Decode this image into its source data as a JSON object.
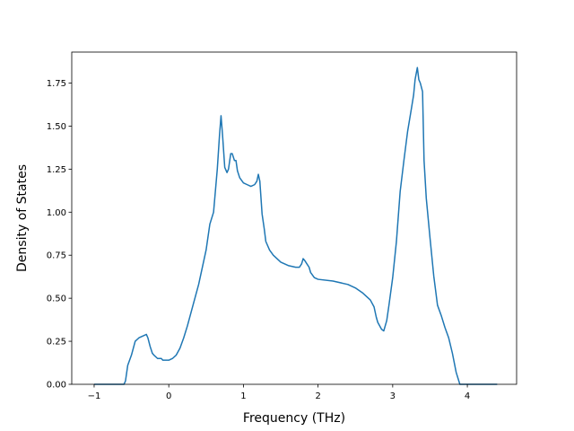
{
  "chart_data": {
    "type": "line",
    "title": "",
    "xlabel": "Frequency (THz)",
    "ylabel": "Density of States",
    "xlim": [
      -1.3,
      4.66
    ],
    "ylim": [
      0,
      1.93
    ],
    "grid": false,
    "x_ticks": [
      -1,
      0,
      1,
      2,
      3,
      4
    ],
    "x_tick_labels": [
      "−1",
      "0",
      "1",
      "2",
      "3",
      "4"
    ],
    "y_ticks": [
      0.0,
      0.25,
      0.5,
      0.75,
      1.0,
      1.25,
      1.5,
      1.75
    ],
    "y_tick_labels": [
      "0.00",
      "0.25",
      "0.50",
      "0.75",
      "1.00",
      "1.25",
      "1.50",
      "1.75"
    ],
    "line_color": "#1f77b4",
    "series": [
      {
        "x": [
          -1.0,
          -0.8,
          -0.6,
          -0.58,
          -0.55,
          -0.5,
          -0.45,
          -0.4,
          -0.35,
          -0.3,
          -0.28,
          -0.25,
          -0.22,
          -0.2,
          -0.15,
          -0.1,
          -0.08,
          -0.05,
          0.0,
          0.05,
          0.1,
          0.15,
          0.2,
          0.25,
          0.3,
          0.4,
          0.5,
          0.55,
          0.6,
          0.62,
          0.65,
          0.68,
          0.7,
          0.72,
          0.75,
          0.78,
          0.8,
          0.83,
          0.85,
          0.88,
          0.9,
          0.92,
          0.95,
          1.0,
          1.05,
          1.1,
          1.15,
          1.18,
          1.2,
          1.22,
          1.25,
          1.28,
          1.3,
          1.35,
          1.4,
          1.5,
          1.6,
          1.7,
          1.75,
          1.78,
          1.8,
          1.82,
          1.85,
          1.88,
          1.9,
          1.95,
          2.0,
          2.2,
          2.4,
          2.5,
          2.6,
          2.7,
          2.75,
          2.78,
          2.8,
          2.85,
          2.88,
          2.9,
          2.92,
          2.95,
          3.0,
          3.05,
          3.1,
          3.15,
          3.2,
          3.25,
          3.28,
          3.3,
          3.33,
          3.35,
          3.37,
          3.4,
          3.42,
          3.45,
          3.5,
          3.55,
          3.6,
          3.65,
          3.7,
          3.75,
          3.8,
          3.85,
          3.9,
          3.93,
          3.95,
          4.0,
          4.2,
          4.4
        ],
        "values": [
          0.0,
          0.0,
          0.0,
          0.02,
          0.11,
          0.17,
          0.25,
          0.27,
          0.28,
          0.29,
          0.27,
          0.22,
          0.18,
          0.17,
          0.15,
          0.15,
          0.14,
          0.14,
          0.14,
          0.15,
          0.17,
          0.21,
          0.27,
          0.34,
          0.42,
          0.58,
          0.78,
          0.93,
          1.0,
          1.1,
          1.25,
          1.45,
          1.56,
          1.45,
          1.26,
          1.23,
          1.25,
          1.34,
          1.34,
          1.3,
          1.3,
          1.24,
          1.2,
          1.17,
          1.16,
          1.15,
          1.16,
          1.18,
          1.22,
          1.18,
          0.99,
          0.9,
          0.83,
          0.78,
          0.75,
          0.71,
          0.69,
          0.68,
          0.68,
          0.7,
          0.73,
          0.72,
          0.7,
          0.68,
          0.65,
          0.62,
          0.61,
          0.6,
          0.58,
          0.56,
          0.53,
          0.49,
          0.45,
          0.39,
          0.36,
          0.32,
          0.31,
          0.34,
          0.37,
          0.46,
          0.62,
          0.83,
          1.12,
          1.3,
          1.47,
          1.6,
          1.68,
          1.77,
          1.84,
          1.77,
          1.75,
          1.7,
          1.3,
          1.08,
          0.85,
          0.63,
          0.46,
          0.4,
          0.33,
          0.27,
          0.18,
          0.07,
          0.0,
          0.0,
          0.0,
          0.0,
          0.0,
          0.0
        ]
      }
    ]
  }
}
